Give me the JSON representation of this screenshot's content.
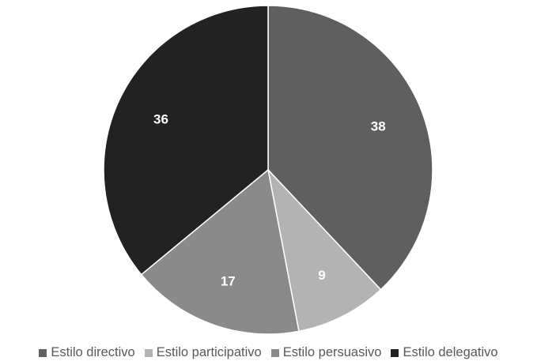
{
  "chart_data": {
    "type": "pie",
    "title": "",
    "categories": [
      "Estilo directivo",
      "Estilo participativo",
      "Estilo persuasivo",
      "Estilo delegativo"
    ],
    "values": [
      38,
      9,
      17,
      36
    ],
    "colors": [
      "#5f5f5f",
      "#b3b3b3",
      "#8a8a8a",
      "#222222"
    ],
    "data_labels": [
      "38",
      "9",
      "17",
      "36"
    ],
    "start_angle_deg": 0,
    "direction": "clockwise",
    "legend_position": "bottom"
  }
}
